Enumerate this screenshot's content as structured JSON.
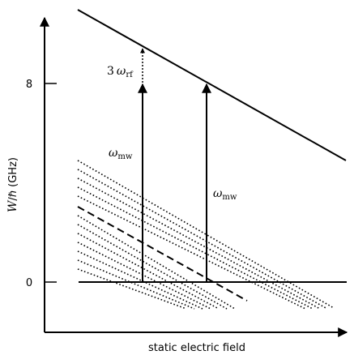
{
  "xlabel": "static electric field",
  "ylabel_main": "W",
  "ylabel_rest": "/ℏ (GHz)",
  "ytick_labels": [
    "8",
    "0"
  ],
  "omega_symbol": "ω",
  "mw_subscript": "mw",
  "rf_coefficient": "3",
  "rf_subscript": "rf"
}
